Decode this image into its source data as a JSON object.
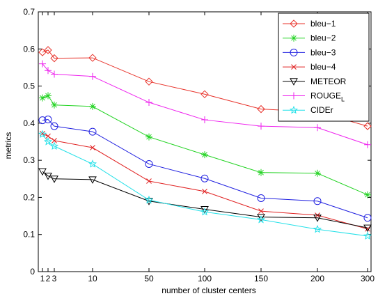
{
  "chart_data": {
    "type": "line",
    "title": "",
    "xlabel": "number of cluster centers",
    "ylabel": "metrics",
    "ylim": [
      0,
      0.7
    ],
    "yticks": [
      0,
      0.1,
      0.2,
      0.3,
      0.4,
      0.5,
      0.6,
      0.7
    ],
    "ytick_labels": [
      "0",
      "0.1",
      "0.2",
      "0.3",
      "0.4",
      "0.5",
      "0.6",
      "0.7"
    ],
    "x_categories": [
      "1",
      "2",
      "3",
      "10",
      "50",
      "100",
      "150",
      "200",
      "300"
    ],
    "xtick_labels": [
      "1",
      "2",
      "3",
      "10",
      "50",
      "100",
      "150",
      "200",
      "300"
    ],
    "grid": false,
    "legend_position": "top-right",
    "series": [
      {
        "name": "bleu−1",
        "color": "#e8322a",
        "marker": "diamond",
        "values": [
          0.591,
          0.597,
          0.575,
          0.576,
          0.512,
          0.478,
          0.438,
          0.43,
          0.392
        ]
      },
      {
        "name": "bleu−2",
        "color": "#22d322",
        "marker": "asterisk",
        "values": [
          0.468,
          0.474,
          0.449,
          0.445,
          0.363,
          0.315,
          0.267,
          0.265,
          0.207
        ]
      },
      {
        "name": "bleu−3",
        "color": "#1f1fe0",
        "marker": "circle",
        "values": [
          0.408,
          0.41,
          0.392,
          0.377,
          0.29,
          0.251,
          0.198,
          0.19,
          0.145
        ]
      },
      {
        "name": "bleu−4",
        "color": "#e02020",
        "marker": "x",
        "values": [
          0.372,
          0.365,
          0.353,
          0.334,
          0.244,
          0.216,
          0.163,
          0.152,
          0.115
        ]
      },
      {
        "name": "METEOR",
        "color": "#000000",
        "marker": "triangle-down",
        "values": [
          0.27,
          0.258,
          0.25,
          0.248,
          0.19,
          0.168,
          0.147,
          0.145,
          0.118
        ]
      },
      {
        "name": "ROUGE",
        "name_subscript": "L",
        "color": "#ee22ee",
        "marker": "plus",
        "values": [
          0.56,
          0.542,
          0.532,
          0.526,
          0.456,
          0.409,
          0.392,
          0.388,
          0.342
        ]
      },
      {
        "name": "CIDEr",
        "color": "#22e0e8",
        "marker": "star",
        "values": [
          0.37,
          0.35,
          0.338,
          0.29,
          0.193,
          0.161,
          0.14,
          0.114,
          0.096
        ]
      }
    ]
  }
}
